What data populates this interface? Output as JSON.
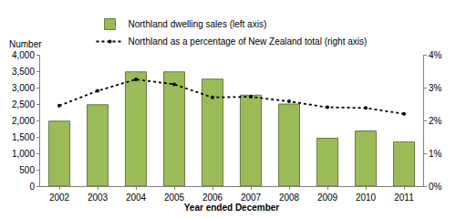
{
  "chart_data": {
    "type": "bar",
    "x_label": "Year ended December",
    "y_label": "Number",
    "categories": [
      "2002",
      "2003",
      "2004",
      "2005",
      "2006",
      "2007",
      "2008",
      "2009",
      "2010",
      "2011"
    ],
    "series": [
      {
        "name": "Northland dwelling sales (left axis)",
        "type": "bar",
        "color": "#9bbb59",
        "values": [
          1980,
          2480,
          3480,
          3480,
          3260,
          2770,
          2500,
          1460,
          1680,
          1350
        ]
      },
      {
        "name": "Northland as a percentage of New Zealand total (right axis)",
        "type": "line",
        "axis": "y2",
        "color": "#000000",
        "line_style": "dot",
        "marker": "circle",
        "values": [
          2.45,
          2.9,
          3.25,
          3.1,
          2.7,
          2.72,
          2.58,
          2.4,
          2.38,
          2.2
        ]
      }
    ],
    "ylim": [
      0,
      4000
    ],
    "yticks": [
      0,
      500,
      {
        "value": 1000,
        "label": "1,000"
      },
      {
        "value": 1500,
        "label": "1,500"
      },
      {
        "value": 2000,
        "label": "2,000"
      },
      {
        "value": 2500,
        "label": "2,500"
      },
      {
        "value": 3000,
        "label": "3,000"
      },
      {
        "value": 3500,
        "label": "3,500"
      },
      {
        "value": 4000,
        "label": "4,000"
      }
    ],
    "y2lim": [
      0,
      4
    ],
    "y2ticks": [
      {
        "value": 0,
        "label": "0%"
      },
      {
        "value": 1,
        "label": "1%"
      },
      {
        "value": 2,
        "label": "2%"
      },
      {
        "value": 3,
        "label": "3%"
      },
      {
        "value": 4,
        "label": "4%"
      }
    ],
    "grid": false,
    "legend": "top"
  }
}
